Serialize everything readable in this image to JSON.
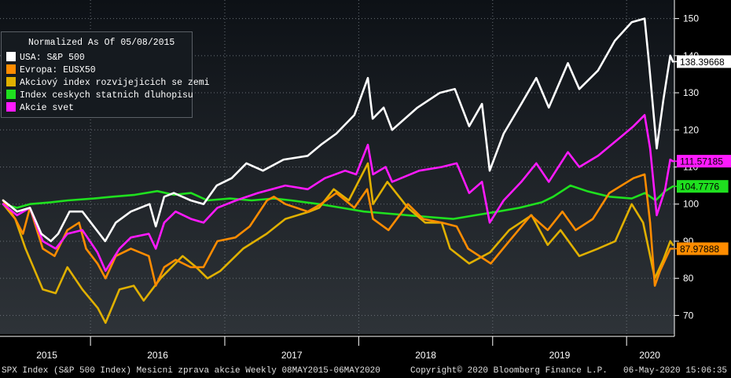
{
  "chart_data": {
    "type": "line",
    "legend_title": "Normalized As Of 05/08/2015",
    "legend_position": "top-left",
    "x_ticks": [
      "2015",
      "2016",
      "2017",
      "2018",
      "2019",
      "2020"
    ],
    "y_ticks": [
      70,
      80,
      90,
      100,
      110,
      120,
      130,
      140,
      150
    ],
    "ylim": [
      65,
      155
    ],
    "xlim": [
      "2015-05-08",
      "2020-05-06"
    ],
    "grid": true,
    "series": [
      {
        "name": "USA: S&P 500",
        "color": "#ffffff",
        "last_label": "138.39668",
        "points": [
          [
            "2015-05-08",
            101
          ],
          [
            "2015-06-15",
            98
          ],
          [
            "2015-07-20",
            99
          ],
          [
            "2015-08-20",
            92
          ],
          [
            "2015-09-15",
            90
          ],
          [
            "2015-10-05",
            92
          ],
          [
            "2015-11-05",
            98
          ],
          [
            "2015-12-10",
            98
          ],
          [
            "2016-01-10",
            94
          ],
          [
            "2016-02-10",
            90
          ],
          [
            "2016-03-10",
            95
          ],
          [
            "2016-04-20",
            98
          ],
          [
            "2016-06-10",
            100
          ],
          [
            "2016-06-27",
            94
          ],
          [
            "2016-07-20",
            102
          ],
          [
            "2016-08-15",
            103
          ],
          [
            "2016-09-30",
            101
          ],
          [
            "2016-11-04",
            100
          ],
          [
            "2016-12-10",
            105
          ],
          [
            "2017-01-20",
            107
          ],
          [
            "2017-03-01",
            111
          ],
          [
            "2017-04-15",
            109
          ],
          [
            "2017-06-10",
            112
          ],
          [
            "2017-08-15",
            113
          ],
          [
            "2017-09-20",
            116
          ],
          [
            "2017-11-01",
            119
          ],
          [
            "2017-12-20",
            124
          ],
          [
            "2018-01-26",
            134
          ],
          [
            "2018-02-08",
            123
          ],
          [
            "2018-03-10",
            126
          ],
          [
            "2018-04-02",
            120
          ],
          [
            "2018-06-10",
            126
          ],
          [
            "2018-08-10",
            130
          ],
          [
            "2018-09-20",
            131
          ],
          [
            "2018-10-29",
            121
          ],
          [
            "2018-12-03",
            127
          ],
          [
            "2018-12-24",
            109
          ],
          [
            "2019-01-31",
            119
          ],
          [
            "2019-03-20",
            127
          ],
          [
            "2019-04-30",
            134
          ],
          [
            "2019-06-03",
            126
          ],
          [
            "2019-07-25",
            138
          ],
          [
            "2019-08-25",
            131
          ],
          [
            "2019-10-15",
            136
          ],
          [
            "2019-11-30",
            144
          ],
          [
            "2020-01-15",
            149
          ],
          [
            "2020-02-19",
            150
          ],
          [
            "2020-03-02",
            138
          ],
          [
            "2020-03-23",
            115
          ],
          [
            "2020-04-10",
            128
          ],
          [
            "2020-04-29",
            140
          ],
          [
            "2020-05-06",
            138.39668
          ]
        ]
      },
      {
        "name": "Evropa: EUSX50",
        "color": "#ff8c00",
        "last_label": "87.97888",
        "points": [
          [
            "2015-05-08",
            101
          ],
          [
            "2015-06-10",
            96
          ],
          [
            "2015-07-01",
            92
          ],
          [
            "2015-07-20",
            99
          ],
          [
            "2015-08-24",
            88
          ],
          [
            "2015-09-25",
            86
          ],
          [
            "2015-10-30",
            93
          ],
          [
            "2015-12-01",
            95
          ],
          [
            "2015-12-20",
            88
          ],
          [
            "2016-01-20",
            84
          ],
          [
            "2016-02-11",
            80
          ],
          [
            "2016-03-10",
            86
          ],
          [
            "2016-04-20",
            88
          ],
          [
            "2016-06-08",
            86
          ],
          [
            "2016-06-27",
            78
          ],
          [
            "2016-07-20",
            83
          ],
          [
            "2016-08-20",
            85
          ],
          [
            "2016-09-30",
            83
          ],
          [
            "2016-11-04",
            83
          ],
          [
            "2016-12-12",
            90
          ],
          [
            "2017-01-30",
            91
          ],
          [
            "2017-03-10",
            94
          ],
          [
            "2017-04-26",
            101
          ],
          [
            "2017-05-15",
            102
          ],
          [
            "2017-06-15",
            100
          ],
          [
            "2017-08-15",
            98
          ],
          [
            "2017-09-20",
            100
          ],
          [
            "2017-11-01",
            103
          ],
          [
            "2017-12-20",
            99
          ],
          [
            "2018-01-24",
            104
          ],
          [
            "2018-02-09",
            96
          ],
          [
            "2018-03-23",
            93
          ],
          [
            "2018-05-15",
            100
          ],
          [
            "2018-06-25",
            96
          ],
          [
            "2018-08-15",
            95
          ],
          [
            "2018-09-25",
            94
          ],
          [
            "2018-10-26",
            88
          ],
          [
            "2018-12-27",
            84
          ],
          [
            "2019-02-15",
            90
          ],
          [
            "2019-04-15",
            97
          ],
          [
            "2019-05-31",
            93
          ],
          [
            "2019-07-10",
            98
          ],
          [
            "2019-08-15",
            93
          ],
          [
            "2019-10-01",
            96
          ],
          [
            "2019-11-15",
            103
          ],
          [
            "2020-01-20",
            107
          ],
          [
            "2020-02-19",
            108
          ],
          [
            "2020-03-05",
            95
          ],
          [
            "2020-03-18",
            78
          ],
          [
            "2020-04-01",
            82
          ],
          [
            "2020-04-29",
            88
          ],
          [
            "2020-05-06",
            87.97888
          ]
        ]
      },
      {
        "name": "Akciový index rozvijejicich se zemi",
        "color": "#e0b000",
        "last_label": "",
        "points": [
          [
            "2015-05-08",
            100
          ],
          [
            "2015-06-10",
            96
          ],
          [
            "2015-07-08",
            88
          ],
          [
            "2015-08-24",
            77
          ],
          [
            "2015-09-28",
            76
          ],
          [
            "2015-10-30",
            83
          ],
          [
            "2015-12-10",
            77
          ],
          [
            "2016-01-21",
            72
          ],
          [
            "2016-02-11",
            68
          ],
          [
            "2016-03-20",
            77
          ],
          [
            "2016-04-28",
            78
          ],
          [
            "2016-05-25",
            74
          ],
          [
            "2016-07-10",
            80
          ],
          [
            "2016-09-08",
            86
          ],
          [
            "2016-10-15",
            83
          ],
          [
            "2016-11-15",
            80
          ],
          [
            "2016-12-20",
            82
          ],
          [
            "2017-02-20",
            88
          ],
          [
            "2017-04-25",
            92
          ],
          [
            "2017-06-15",
            96
          ],
          [
            "2017-08-20",
            98
          ],
          [
            "2017-09-15",
            99
          ],
          [
            "2017-10-25",
            104
          ],
          [
            "2017-12-05",
            101
          ],
          [
            "2018-01-26",
            111
          ],
          [
            "2018-02-09",
            100
          ],
          [
            "2018-03-20",
            106
          ],
          [
            "2018-05-15",
            99
          ],
          [
            "2018-07-01",
            95
          ],
          [
            "2018-08-15",
            95
          ],
          [
            "2018-09-07",
            88
          ],
          [
            "2018-10-29",
            84
          ],
          [
            "2018-12-25",
            87
          ],
          [
            "2019-02-15",
            93
          ],
          [
            "2019-04-17",
            97
          ],
          [
            "2019-05-31",
            89
          ],
          [
            "2019-07-05",
            93
          ],
          [
            "2019-08-25",
            86
          ],
          [
            "2019-10-15",
            88
          ],
          [
            "2019-12-01",
            90
          ],
          [
            "2020-01-15",
            100
          ],
          [
            "2020-02-15",
            95
          ],
          [
            "2020-03-18",
            80
          ],
          [
            "2020-04-10",
            85
          ],
          [
            "2020-04-29",
            90
          ],
          [
            "2020-05-06",
            89
          ]
        ]
      },
      {
        "name": "Index ceskych statnich dluhopisu",
        "color": "#1fe01f",
        "last_label": "104.7776",
        "points": [
          [
            "2015-05-08",
            100
          ],
          [
            "2015-06-15",
            99
          ],
          [
            "2015-07-20",
            100
          ],
          [
            "2015-09-15",
            100.5
          ],
          [
            "2015-11-01",
            101
          ],
          [
            "2016-01-10",
            101.5
          ],
          [
            "2016-03-01",
            102
          ],
          [
            "2016-05-01",
            102.5
          ],
          [
            "2016-07-01",
            103.5
          ],
          [
            "2016-08-15",
            102.5
          ],
          [
            "2016-10-01",
            103
          ],
          [
            "2016-11-15",
            101
          ],
          [
            "2017-01-15",
            101.5
          ],
          [
            "2017-03-15",
            101
          ],
          [
            "2017-05-15",
            101.5
          ],
          [
            "2017-07-01",
            101
          ],
          [
            "2017-09-15",
            100
          ],
          [
            "2017-11-15",
            99
          ],
          [
            "2018-01-15",
            98
          ],
          [
            "2018-03-15",
            97.5
          ],
          [
            "2018-05-15",
            97
          ],
          [
            "2018-07-15",
            96.5
          ],
          [
            "2018-09-15",
            96
          ],
          [
            "2018-11-15",
            97
          ],
          [
            "2019-01-15",
            98
          ],
          [
            "2019-03-15",
            99
          ],
          [
            "2019-05-15",
            100.5
          ],
          [
            "2019-06-15",
            102
          ],
          [
            "2019-08-01",
            105
          ],
          [
            "2019-09-15",
            103.5
          ],
          [
            "2019-11-15",
            102
          ],
          [
            "2020-01-15",
            101.5
          ],
          [
            "2020-02-20",
            103
          ],
          [
            "2020-03-20",
            101
          ],
          [
            "2020-04-15",
            103.5
          ],
          [
            "2020-05-06",
            104.7776
          ]
        ]
      },
      {
        "name": "Akcie svet",
        "color": "#ff1aff",
        "last_label": "111.57185",
        "points": [
          [
            "2015-05-08",
            100
          ],
          [
            "2015-06-15",
            97
          ],
          [
            "2015-07-20",
            99
          ],
          [
            "2015-08-24",
            90
          ],
          [
            "2015-09-28",
            88
          ],
          [
            "2015-10-30",
            92
          ],
          [
            "2015-12-10",
            93
          ],
          [
            "2016-01-20",
            87
          ],
          [
            "2016-02-11",
            82
          ],
          [
            "2016-03-20",
            88
          ],
          [
            "2016-04-20",
            91
          ],
          [
            "2016-06-08",
            92
          ],
          [
            "2016-06-27",
            88
          ],
          [
            "2016-07-20",
            95
          ],
          [
            "2016-08-20",
            98
          ],
          [
            "2016-10-01",
            96
          ],
          [
            "2016-11-04",
            95
          ],
          [
            "2016-12-12",
            99
          ],
          [
            "2017-02-01",
            101
          ],
          [
            "2017-04-01",
            103
          ],
          [
            "2017-06-15",
            105
          ],
          [
            "2017-08-15",
            104
          ],
          [
            "2017-10-01",
            107
          ],
          [
            "2017-11-25",
            109
          ],
          [
            "2017-12-25",
            108
          ],
          [
            "2018-01-26",
            116
          ],
          [
            "2018-02-09",
            108
          ],
          [
            "2018-03-15",
            110
          ],
          [
            "2018-04-02",
            106
          ],
          [
            "2018-06-15",
            109
          ],
          [
            "2018-08-15",
            110
          ],
          [
            "2018-09-25",
            111
          ],
          [
            "2018-10-29",
            103
          ],
          [
            "2018-12-03",
            106
          ],
          [
            "2018-12-24",
            95
          ],
          [
            "2019-01-31",
            101
          ],
          [
            "2019-03-20",
            106
          ],
          [
            "2019-04-30",
            111
          ],
          [
            "2019-06-03",
            106
          ],
          [
            "2019-07-25",
            114
          ],
          [
            "2019-08-25",
            110
          ],
          [
            "2019-10-15",
            113
          ],
          [
            "2019-12-15",
            118
          ],
          [
            "2020-01-20",
            121
          ],
          [
            "2020-02-19",
            124
          ],
          [
            "2020-03-05",
            115
          ],
          [
            "2020-03-23",
            97
          ],
          [
            "2020-04-15",
            104
          ],
          [
            "2020-04-29",
            112
          ],
          [
            "2020-05-06",
            111.57185
          ]
        ]
      }
    ]
  },
  "footer": {
    "left": "SPX Index (S&P 500 Index) Mesicni zprava akcie  Weekly 08MAY2015-06MAY2020",
    "center": "Copyright© 2020 Bloomberg Finance L.P.",
    "right": "06-May-2020 15:06:35"
  }
}
